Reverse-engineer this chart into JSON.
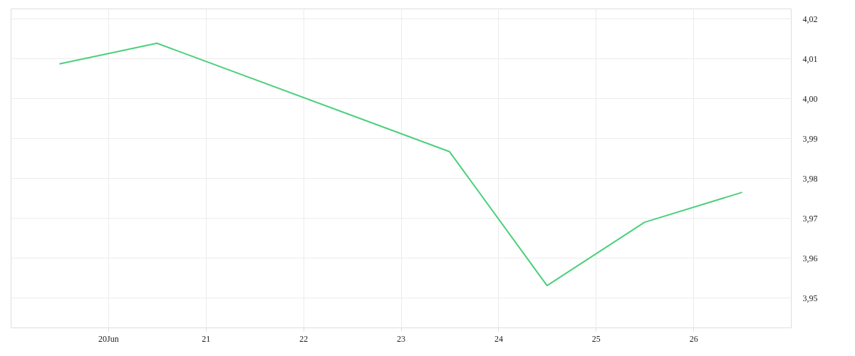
{
  "chart_data": {
    "type": "line",
    "x": [
      "--06-19T12:00",
      "--06-20T12:00",
      "--06-23T12:00",
      "--06-24T12:00",
      "--06-25T12:00",
      "--06-26T12:00"
    ],
    "series": [
      {
        "color": "#4cd07a",
        "values": [
          4.0086,
          4.0138,
          3.9866,
          3.953,
          3.9689,
          3.9764
        ]
      }
    ],
    "xlim": [
      "--06-19",
      "--06-27"
    ],
    "xticks": [
      {
        "value": "--06-20",
        "label": "20Jun"
      },
      {
        "value": "--06-21",
        "label": "21"
      },
      {
        "value": "--06-22",
        "label": "22"
      },
      {
        "value": "--06-23",
        "label": "23"
      },
      {
        "value": "--06-24",
        "label": "24"
      },
      {
        "value": "--06-25",
        "label": "25"
      },
      {
        "value": "--06-26",
        "label": "26"
      }
    ],
    "ylim": [
      3.9425,
      4.0225
    ],
    "yticks": [
      {
        "value": 3.95,
        "label": "3,95"
      },
      {
        "value": 3.96,
        "label": "3,96"
      },
      {
        "value": 3.97,
        "label": "3,97"
      },
      {
        "value": 3.98,
        "label": "3,98"
      },
      {
        "value": 3.99,
        "label": "3,99"
      },
      {
        "value": 4.0,
        "label": "4,00"
      },
      {
        "value": 4.01,
        "label": "4,01"
      },
      {
        "value": 4.02,
        "label": "4,02"
      }
    ],
    "grid": true,
    "marker": "none",
    "line_style": "solid"
  }
}
